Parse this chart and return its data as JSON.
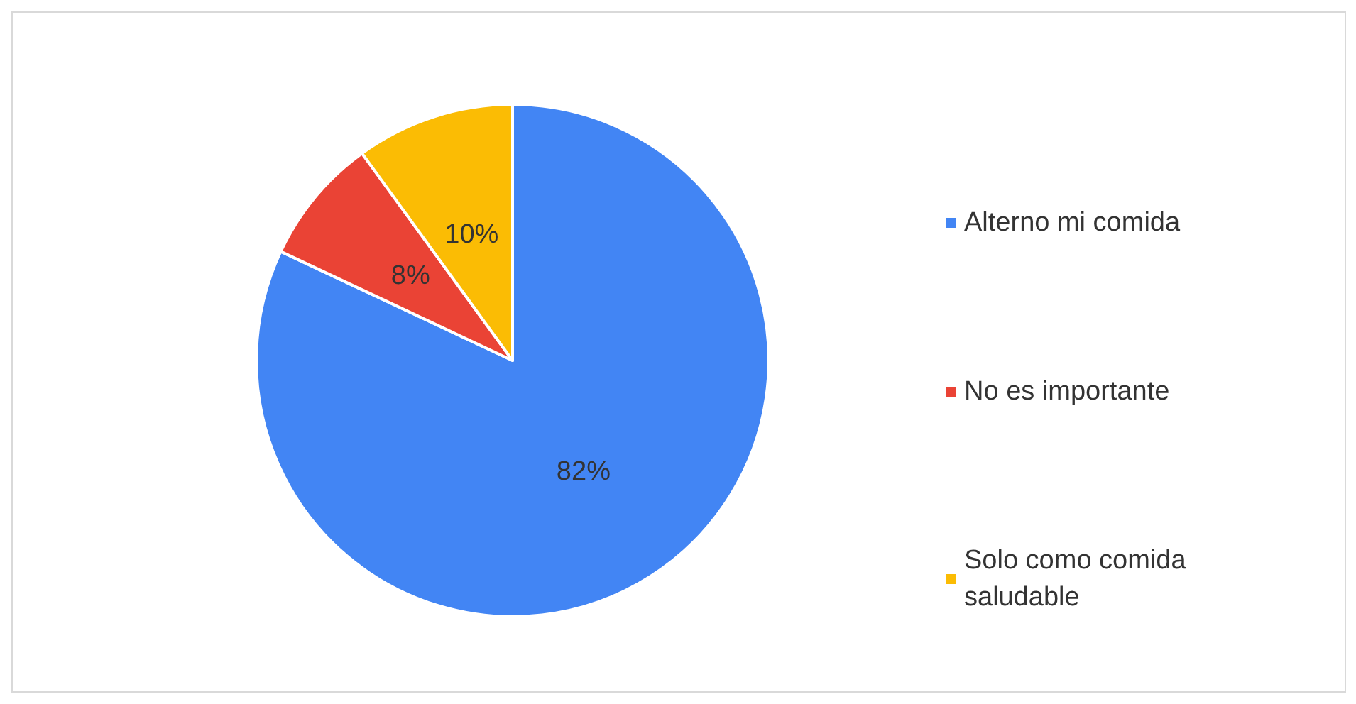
{
  "chart_data": {
    "type": "pie",
    "categories": [
      "Alterno mi comida",
      "No es importante",
      "Solo como comida saludable"
    ],
    "values": [
      82,
      8,
      10
    ],
    "colors": [
      "#4285f4",
      "#ea4335",
      "#fbbc04"
    ],
    "value_labels": [
      "82%",
      "8%",
      "10%"
    ],
    "legend": "right"
  }
}
